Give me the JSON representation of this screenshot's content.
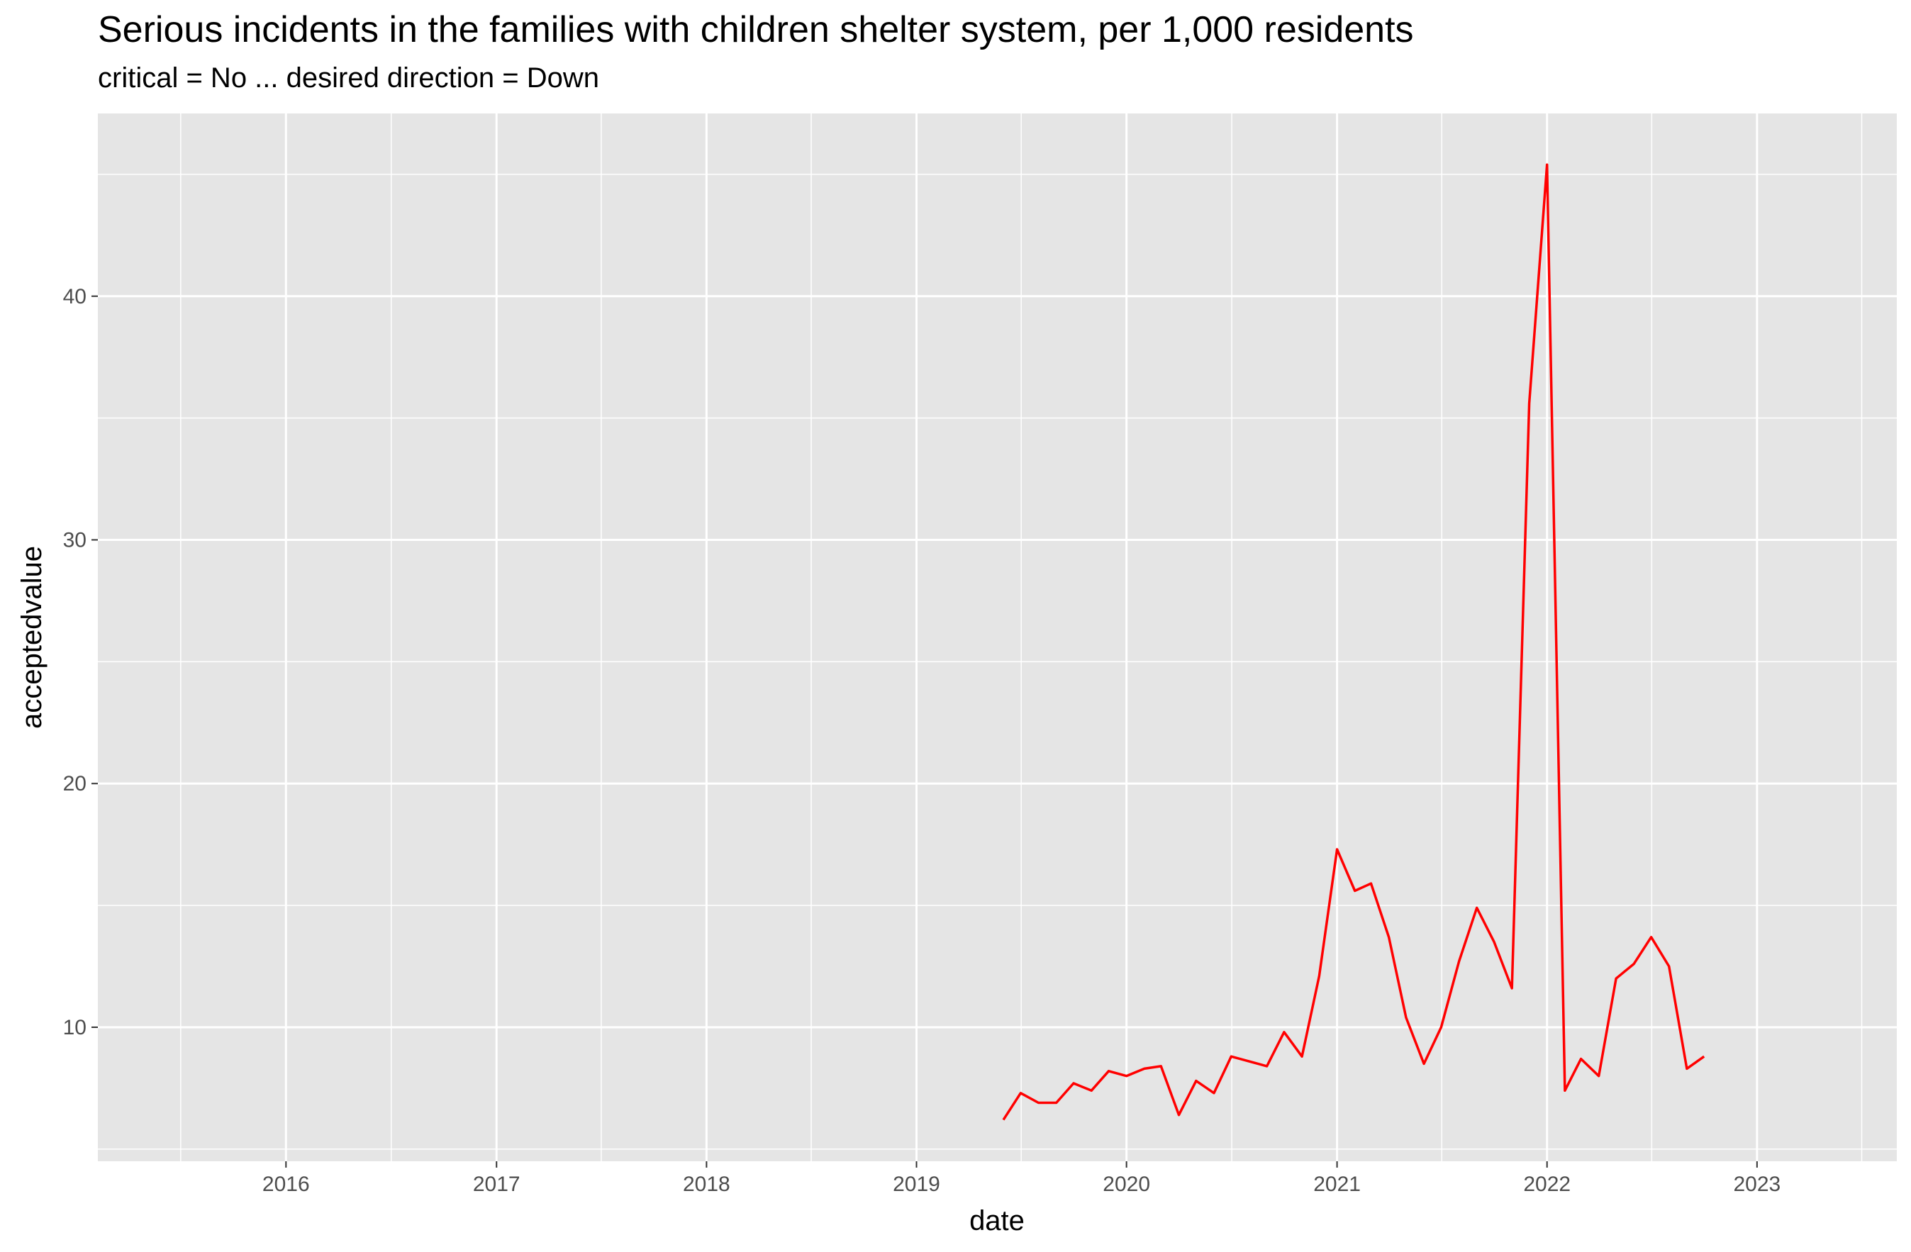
{
  "chart_data": {
    "type": "line",
    "title": "Serious incidents in the families with children shelter system, per 1,000 residents",
    "subtitle": "critical = No ... desired direction = Down",
    "xlabel": "date",
    "ylabel": "acceptedvalue",
    "xlim": [
      "2015-02-08",
      "2023-09-01"
    ],
    "ylim": [
      4.5,
      47.5
    ],
    "x_ticks": [
      "2016",
      "2017",
      "2018",
      "2019",
      "2020",
      "2021",
      "2022",
      "2023"
    ],
    "y_ticks": [
      10,
      20,
      30,
      40
    ],
    "y_minor": [
      5,
      15,
      25,
      35,
      45
    ],
    "grid": true,
    "legend": "none",
    "colors": {
      "line": "#ff0000",
      "panel": "#e5e5e5",
      "grid": "#ffffff"
    },
    "series": [
      {
        "x": [
          "2019-06-01",
          "2019-07-01",
          "2019-08-01",
          "2019-09-01",
          "2019-10-01",
          "2019-11-01",
          "2019-12-01",
          "2020-01-01",
          "2020-02-01",
          "2020-03-01",
          "2020-04-01",
          "2020-05-01",
          "2020-06-01",
          "2020-07-01",
          "2020-08-01",
          "2020-09-01",
          "2020-10-01",
          "2020-11-01",
          "2020-12-01",
          "2021-01-01",
          "2021-02-01",
          "2021-03-01",
          "2021-04-01",
          "2021-05-01",
          "2021-06-01",
          "2021-07-01",
          "2021-08-01",
          "2021-09-01",
          "2021-10-01",
          "2021-11-01",
          "2021-12-01",
          "2022-01-01",
          "2022-02-01",
          "2022-03-01",
          "2022-04-01",
          "2022-05-01",
          "2022-06-01",
          "2022-07-01",
          "2022-08-01",
          "2022-09-01",
          "2022-10-01"
        ],
        "values": [
          6.2,
          7.3,
          6.9,
          6.9,
          7.7,
          7.4,
          8.2,
          8.0,
          8.3,
          8.4,
          6.4,
          7.8,
          7.3,
          8.8,
          8.6,
          8.4,
          9.8,
          8.8,
          12.1,
          17.3,
          15.6,
          15.9,
          13.7,
          10.4,
          8.5,
          10.0,
          12.7,
          14.9,
          13.5,
          11.6,
          35.6,
          45.4,
          7.4,
          8.7,
          8.0,
          12.0,
          12.6,
          13.7,
          12.5,
          8.3,
          8.8
        ]
      }
    ]
  }
}
